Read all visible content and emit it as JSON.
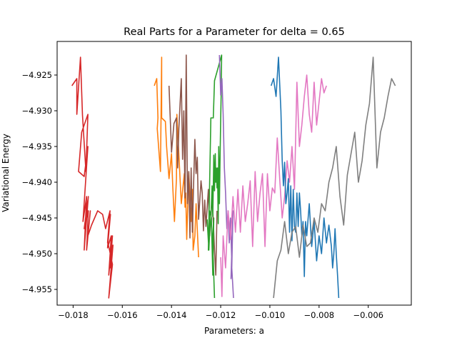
{
  "chart_data": {
    "type": "line",
    "title": "Real Parts for a Parameter for delta = 0.65",
    "xlabel": "Parameters: a",
    "ylabel": "Variational Energy",
    "xlim": [
      -0.01865,
      -0.00425
    ],
    "ylim": [
      -4.9572,
      -4.9203
    ],
    "x_ticks": [
      -0.018,
      -0.016,
      -0.014,
      -0.012,
      -0.01,
      -0.008,
      -0.006
    ],
    "x_tick_labels": [
      "−0.018",
      "−0.016",
      "−0.014",
      "−0.012",
      "−0.010",
      "−0.008",
      "−0.006"
    ],
    "y_ticks": [
      -4.925,
      -4.93,
      -4.935,
      -4.94,
      -4.945,
      -4.95,
      -4.955
    ],
    "y_tick_labels": [
      "−4.925",
      "−4.930",
      "−4.935",
      "−4.940",
      "−4.945",
      "−4.950",
      "−4.955"
    ],
    "grid": false,
    "legend": "none",
    "series": [
      {
        "color": "#d62728",
        "x": [
          -0.01805,
          -0.01785,
          -0.01785,
          -0.0177,
          -0.01762,
          -0.01748,
          -0.0174,
          -0.01765,
          -0.01778,
          -0.01755,
          -0.0174,
          -0.0176,
          -0.01745,
          -0.01755,
          -0.01738,
          -0.01755,
          -0.01738,
          -0.01745,
          -0.0173,
          -0.0174,
          -0.01725,
          -0.017,
          -0.0168,
          -0.01668,
          -0.0165,
          -0.0166,
          -0.01648,
          -0.0166,
          -0.01645,
          -0.01655,
          -0.0164,
          -0.0165,
          -0.01638,
          -0.01655,
          -0.0164,
          -0.01658
        ],
        "y": [
          -4.9265,
          -4.9255,
          -4.9305,
          -4.9225,
          -4.9306,
          -4.9385,
          -4.9305,
          -4.933,
          -4.9385,
          -4.9392,
          -4.935,
          -4.9455,
          -4.942,
          -4.9495,
          -4.942,
          -4.9465,
          -4.944,
          -4.9495,
          -4.944,
          -4.9475,
          -4.946,
          -4.944,
          -4.9445,
          -4.9465,
          -4.944,
          -4.9485,
          -4.9445,
          -4.9492,
          -4.9475,
          -4.953,
          -4.9475,
          -4.952,
          -4.9488,
          -4.9562,
          -4.9515,
          -4.9485
        ]
      },
      {
        "color": "#ff7f0e",
        "x": [
          -0.0147,
          -0.0146,
          -0.01455,
          -0.01458,
          -0.01445,
          -0.0144,
          -0.0144,
          -0.01425,
          -0.0142,
          -0.0141,
          -0.014,
          -0.01395,
          -0.01388,
          -0.0138,
          -0.01378,
          -0.0136,
          -0.01348,
          -0.01345,
          -0.01342,
          -0.01338,
          -0.0133,
          -0.0132,
          -0.01315,
          -0.01312,
          -0.01305,
          -0.013,
          -0.0129
        ],
        "y": [
          -4.9265,
          -4.9255,
          -4.931,
          -4.9325,
          -4.9385,
          -4.9225,
          -4.931,
          -4.9315,
          -4.935,
          -4.9395,
          -4.936,
          -4.9405,
          -4.9455,
          -4.9395,
          -4.9305,
          -4.943,
          -4.9388,
          -4.9435,
          -4.9415,
          -4.948,
          -4.9385,
          -4.9455,
          -4.941,
          -4.9495,
          -4.9475,
          -4.943,
          -4.9505
        ]
      },
      {
        "color": "#8c564b",
        "x": [
          -0.0141,
          -0.01405,
          -0.014,
          -0.0139,
          -0.0138,
          -0.01375,
          -0.0137,
          -0.0136,
          -0.01355,
          -0.0135,
          -0.01345,
          -0.0134,
          -0.01335,
          -0.0133,
          -0.01325,
          -0.0132,
          -0.01315,
          -0.0131,
          -0.01305,
          -0.013,
          -0.01295,
          -0.0129,
          -0.0128,
          -0.01275,
          -0.0127,
          -0.01265,
          -0.0126,
          -0.0125,
          -0.01245,
          -0.0124,
          -0.01235,
          -0.0123,
          -0.01225,
          -0.0122,
          -0.01215
        ],
        "y": [
          -4.9265,
          -4.931,
          -4.9358,
          -4.9318,
          -4.931,
          -4.938,
          -4.9325,
          -4.9255,
          -4.9368,
          -4.93,
          -4.9422,
          -4.9222,
          -4.943,
          -4.9385,
          -4.9478,
          -4.938,
          -4.947,
          -4.94,
          -4.934,
          -4.9388,
          -4.9365,
          -4.9452,
          -4.9398,
          -4.9415,
          -4.9468,
          -4.9425,
          -4.9462,
          -4.941,
          -4.9475,
          -4.945,
          -4.942,
          -4.9455,
          -4.9495,
          -4.953,
          -4.944
        ]
      },
      {
        "color": "#2ca02c",
        "x": [
          -0.01255,
          -0.01248,
          -0.01245,
          -0.0124,
          -0.01235,
          -0.01232,
          -0.0123,
          -0.01228,
          -0.01225,
          -0.01222,
          -0.0122,
          -0.01218,
          -0.01215,
          -0.01213,
          -0.0121,
          -0.01208,
          -0.01205,
          -0.01203,
          -0.012,
          -0.01198,
          -0.01196,
          -0.01225,
          -0.0123,
          -0.0124,
          -0.0125,
          -0.01245,
          -0.01238,
          -0.01232,
          -0.01228,
          -0.01233,
          -0.01225
        ],
        "y": [
          -4.9452,
          -4.9495,
          -4.947,
          -4.945,
          -4.9405,
          -4.9448,
          -4.9408,
          -4.9362,
          -4.9412,
          -4.936,
          -4.94,
          -4.938,
          -4.9408,
          -4.938,
          -4.9458,
          -4.935,
          -4.943,
          -4.9378,
          -4.931,
          -4.9278,
          -4.9222,
          -4.9258,
          -4.931,
          -4.931,
          -4.9495,
          -4.944,
          -4.945,
          -4.953,
          -4.945,
          -4.948,
          -4.9562
        ]
      },
      {
        "color": "#9467bd",
        "x": [
          -0.01205,
          -0.012,
          -0.01195,
          -0.0119,
          -0.01185,
          -0.0118,
          -0.01175,
          -0.0117,
          -0.01165,
          -0.0116,
          -0.01158,
          -0.01155,
          -0.01158,
          -0.0115,
          -0.01155,
          -0.01148
        ],
        "y": [
          -4.9222,
          -4.9278,
          -4.9255,
          -4.9305,
          -4.938,
          -4.9415,
          -4.9465,
          -4.944,
          -4.9485,
          -4.945,
          -4.9475,
          -4.951,
          -4.9535,
          -4.944,
          -4.952,
          -4.9562
        ]
      },
      {
        "color": "#e377c2",
        "x": [
          -0.012,
          -0.01195,
          -0.0119,
          -0.0118,
          -0.0117,
          -0.0116,
          -0.0115,
          -0.0114,
          -0.0113,
          -0.0112,
          -0.0111,
          -0.011,
          -0.0109,
          -0.0108,
          -0.0107,
          -0.0106,
          -0.0105,
          -0.0104,
          -0.0103,
          -0.0102,
          -0.0101,
          -0.01,
          -0.0099,
          -0.0098,
          -0.0097,
          -0.0096,
          -0.0095,
          -0.0094,
          -0.0093,
          -0.0092,
          -0.0091,
          -0.009,
          -0.0089,
          -0.0088,
          -0.0087,
          -0.0086,
          -0.0085,
          -0.0084,
          -0.0083,
          -0.0082,
          -0.0081,
          -0.008,
          -0.0079,
          -0.0078,
          -0.0077
        ],
        "y": [
          -4.9505,
          -4.956,
          -4.9475,
          -4.952,
          -4.944,
          -4.948,
          -4.942,
          -4.947,
          -4.941,
          -4.947,
          -4.9405,
          -4.9455,
          -4.943,
          -4.9398,
          -4.949,
          -4.9385,
          -4.9455,
          -4.9415,
          -4.9388,
          -4.949,
          -4.9388,
          -4.944,
          -4.9408,
          -4.9415,
          -4.9338,
          -4.9395,
          -4.945,
          -4.942,
          -4.937,
          -4.94,
          -4.935,
          -4.941,
          -4.926,
          -4.935,
          -4.932,
          -4.928,
          -4.925,
          -4.9305,
          -4.933,
          -4.926,
          -4.932,
          -4.9288,
          -4.9255,
          -4.9275,
          -4.9265
        ]
      },
      {
        "color": "#1f77b4",
        "x": [
          -0.00995,
          -0.00985,
          -0.00975,
          -0.00965,
          -0.00955,
          -0.0095,
          -0.00945,
          -0.0094,
          -0.00935,
          -0.0093,
          -0.00925,
          -0.0092,
          -0.00915,
          -0.0091,
          -0.00905,
          -0.009,
          -0.00895,
          -0.0089,
          -0.00885,
          -0.0088,
          -0.00875,
          -0.0087,
          -0.00865,
          -0.0086,
          -0.00855,
          -0.0085,
          -0.0084,
          -0.0083,
          -0.0082,
          -0.0081,
          -0.008,
          -0.0079,
          -0.0078,
          -0.0077,
          -0.0076,
          -0.0075,
          -0.00745,
          -0.0074,
          -0.00735,
          -0.0073,
          -0.00725,
          -0.0072
        ],
        "y": [
          -4.9265,
          -4.9255,
          -4.928,
          -4.9225,
          -4.93,
          -4.937,
          -4.9405,
          -4.9372,
          -4.943,
          -4.9415,
          -4.9395,
          -4.947,
          -4.9405,
          -4.9482,
          -4.941,
          -4.9462,
          -4.947,
          -4.9415,
          -4.9462,
          -4.9415,
          -4.944,
          -4.9475,
          -4.9455,
          -4.9532,
          -4.9455,
          -4.9475,
          -4.943,
          -4.949,
          -4.9455,
          -4.951,
          -4.9475,
          -4.95,
          -4.945,
          -4.9485,
          -4.946,
          -4.949,
          -4.952,
          -4.95,
          -4.9465,
          -4.95,
          -4.953,
          -4.9562
        ]
      },
      {
        "color": "#7f7f7f",
        "x": [
          -0.00985,
          -0.0097,
          -0.00955,
          -0.0094,
          -0.00925,
          -0.0091,
          -0.00895,
          -0.0088,
          -0.00865,
          -0.0085,
          -0.00835,
          -0.0082,
          -0.00805,
          -0.0079,
          -0.00775,
          -0.0076,
          -0.00745,
          -0.0073,
          -0.00715,
          -0.007,
          -0.00685,
          -0.0067,
          -0.00655,
          -0.0064,
          -0.00625,
          -0.0061,
          -0.00595,
          -0.0058,
          -0.00565,
          -0.0055,
          -0.00535,
          -0.0052,
          -0.00505,
          -0.0049
        ],
        "y": [
          -4.9562,
          -4.951,
          -4.9495,
          -4.9455,
          -4.95,
          -4.947,
          -4.9462,
          -4.9505,
          -4.946,
          -4.949,
          -4.9485,
          -4.945,
          -4.947,
          -4.943,
          -4.944,
          -4.94,
          -4.938,
          -4.935,
          -4.942,
          -4.946,
          -4.939,
          -4.936,
          -4.933,
          -4.94,
          -4.937,
          -4.932,
          -4.929,
          -4.9225,
          -4.938,
          -4.933,
          -4.931,
          -4.928,
          -4.9255,
          -4.9265
        ]
      }
    ]
  }
}
